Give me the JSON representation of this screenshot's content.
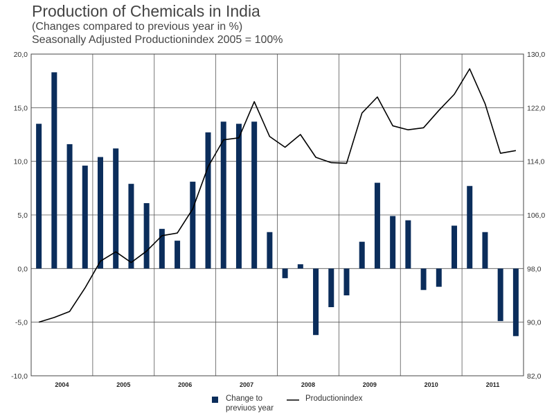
{
  "chart_data": {
    "type": "bar",
    "title": "Production of Chemicals in India",
    "subtitle1": "(Changes compared to previous year in %)",
    "subtitle2": "Seasonally Adjusted Productionindex 2005 = 100%",
    "years": [
      "2004",
      "2005",
      "2006",
      "2007",
      "2008",
      "2009",
      "2010",
      "2011"
    ],
    "left_axis": {
      "min": -10,
      "max": 20,
      "ticks": [
        "-10,0",
        "-5,0",
        "0,0",
        "5,0",
        "10,0",
        "15,0",
        "20,0"
      ]
    },
    "right_axis": {
      "min": 82,
      "max": 130,
      "ticks": [
        "82,0",
        "90,0",
        "98,0",
        "106,0",
        "114,0",
        "122,0",
        "130,0"
      ]
    },
    "series": [
      {
        "name": "Change to previuos year",
        "legend_line1": "Change to",
        "legend_line2": "previuos year",
        "type": "bar",
        "axis": "left",
        "color": "#0b2d5b",
        "values": [
          13.5,
          18.3,
          11.6,
          9.6,
          10.4,
          11.2,
          7.9,
          6.1,
          3.7,
          2.6,
          8.1,
          12.7,
          13.7,
          13.5,
          13.7,
          3.4,
          -0.9,
          0.4,
          -6.2,
          -3.6,
          -2.5,
          2.5,
          8.0,
          4.9,
          4.5,
          -2.0,
          -1.7,
          4.0,
          7.7,
          3.4,
          -4.9,
          -6.3
        ]
      },
      {
        "name": "Productionindex",
        "type": "line",
        "axis": "right",
        "color": "#000000",
        "values": [
          90.0,
          90.7,
          91.6,
          95.1,
          99.1,
          100.5,
          98.9,
          100.6,
          102.9,
          103.3,
          106.9,
          113.2,
          117.2,
          117.5,
          122.9,
          117.7,
          116.1,
          118.0,
          114.6,
          113.8,
          113.7,
          121.2,
          123.6,
          119.3,
          118.7,
          119.0,
          121.6,
          124.0,
          127.8,
          122.6,
          115.2,
          115.6
        ]
      }
    ]
  }
}
